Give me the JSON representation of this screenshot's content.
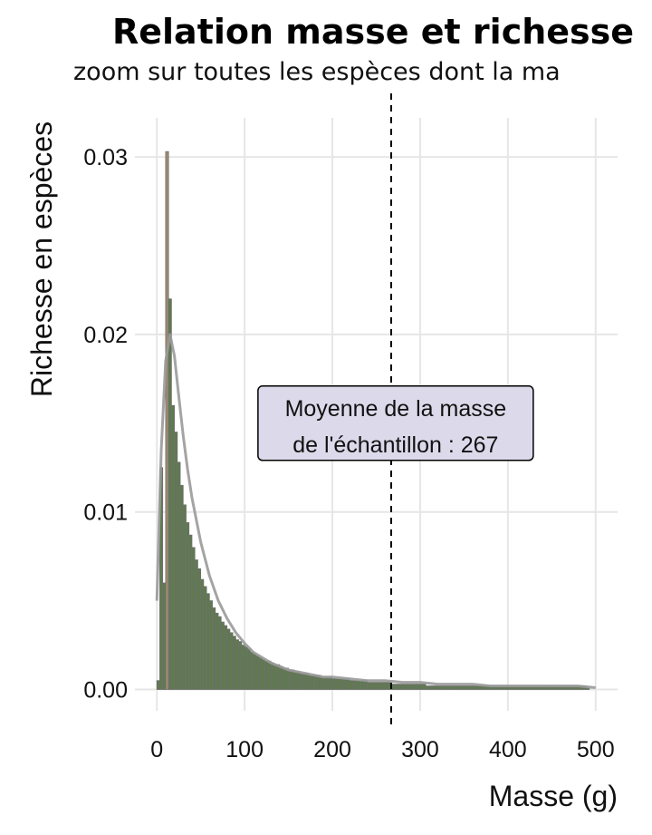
{
  "chart_data": {
    "type": "bar",
    "title": "Relation masse et richesse",
    "subtitle": "zoom sur toutes les espèces dont la ma",
    "xlabel": "Masse (g)",
    "ylabel": "Richesse en espèces",
    "xlim": [
      -25,
      525
    ],
    "ylim": [
      -0.0012,
      0.0322
    ],
    "x_ticks": [
      0,
      100,
      200,
      300,
      400,
      500
    ],
    "x_tick_labels": [
      "0",
      "100",
      "200",
      "300",
      "400",
      "500"
    ],
    "y_ticks": [
      0,
      0.01,
      0.02,
      0.03
    ],
    "y_tick_labels": [
      "0.00",
      "0.01",
      "0.02",
      "0.03"
    ],
    "grid": true,
    "histogram": {
      "bin_width": 3.33,
      "x_start": 0,
      "values": [
        0.0005,
        0.0125,
        0.006,
        0.0303,
        0.022,
        0.016,
        0.0145,
        0.0128,
        0.0115,
        0.0104,
        0.0094,
        0.0087,
        0.008,
        0.0073,
        0.0068,
        0.0062,
        0.0058,
        0.0054,
        0.005,
        0.0046,
        0.0043,
        0.0041,
        0.0038,
        0.0036,
        0.0034,
        0.0032,
        0.003,
        0.0028,
        0.0027,
        0.0025,
        0.0024,
        0.0023,
        0.0021,
        0.002,
        0.0019,
        0.0018,
        0.0017,
        0.0016,
        0.0016,
        0.0015,
        0.0014,
        0.0014,
        0.0013,
        0.0012,
        0.0012,
        0.0011,
        0.0011,
        0.001,
        0.001,
        0.0009,
        0.0009,
        0.0009,
        0.0008,
        0.0008,
        0.0008,
        0.0008,
        0.0007,
        0.0007,
        0.0007,
        0.0007,
        0.0006,
        0.0006,
        0.0006,
        0.0006,
        0.0006,
        0.0006,
        0.0005,
        0.0005,
        0.0005,
        0.0005,
        0.0005,
        0.0005,
        0.0004,
        0.0004,
        0.0004,
        0.0004,
        0.0004,
        0.0004,
        0.0004,
        0.0004,
        0.0003,
        0.0003,
        0.0003,
        0.0003,
        0.0003,
        0.0003,
        0.0003,
        0.0003,
        0.0003,
        0.0003,
        0.0003,
        0.0003,
        0.0002,
        0.0002,
        0.0002,
        0.0002,
        0.0002,
        0.0002,
        0.0002,
        0.0002,
        0.0002,
        0.0002,
        0.0002,
        0.0002,
        0.0002,
        0.0002,
        0.0002,
        0.0002,
        0.0002,
        0.0002,
        0.0002,
        0.0002,
        0.0002,
        0.0002,
        0.0002,
        0.0002,
        0.0002,
        0.0002,
        0.0002,
        0.0002,
        0.0002,
        0.0002,
        0.0002,
        0.0002,
        0.0002,
        0.0002,
        0.0002,
        0.0002,
        0.0002,
        0.0002,
        0.0002,
        0.0002,
        0.0002,
        0.0002,
        0.0002,
        0.0002,
        0.0002,
        0.0002,
        0.0002,
        0.0002,
        0.0002,
        0.0002,
        0.0002,
        0.0002,
        0.0002,
        0.0002,
        0.0002,
        0.0001
      ]
    },
    "density": {
      "x": [
        0,
        5,
        10,
        15,
        20,
        25,
        30,
        35,
        40,
        50,
        60,
        70,
        80,
        90,
        100,
        110,
        120,
        130,
        140,
        150,
        160,
        170,
        180,
        190,
        200,
        220,
        240,
        260,
        280,
        300,
        320,
        340,
        360,
        380,
        400,
        420,
        440,
        460,
        480,
        500
      ],
      "y": [
        0.005,
        0.0135,
        0.0185,
        0.02,
        0.0188,
        0.0165,
        0.0143,
        0.0124,
        0.0108,
        0.0083,
        0.0064,
        0.005,
        0.004,
        0.0032,
        0.0026,
        0.0021,
        0.0018,
        0.0015,
        0.0013,
        0.0011,
        0.001,
        0.0009,
        0.0008,
        0.0007,
        0.0007,
        0.0006,
        0.0005,
        0.0005,
        0.0004,
        0.0004,
        0.0003,
        0.0003,
        0.0003,
        0.0002,
        0.0002,
        0.0002,
        0.0002,
        0.0002,
        0.0002,
        0.0001
      ]
    },
    "mean_line": {
      "x": 267
    },
    "annotation": {
      "x": 270,
      "y": 0.015,
      "lines": [
        "Moyenne de la masse",
        "de l'échantillon : 267"
      ]
    },
    "colors": {
      "bar_fill": "#5e7a4e",
      "bar_outline": "#707070",
      "peak_fill": "#a08a70",
      "density_line": "#9a9a9a",
      "mean_line": "#000000",
      "annotation_fill": "#dcdaea",
      "grid": "#e6e6e6"
    }
  }
}
